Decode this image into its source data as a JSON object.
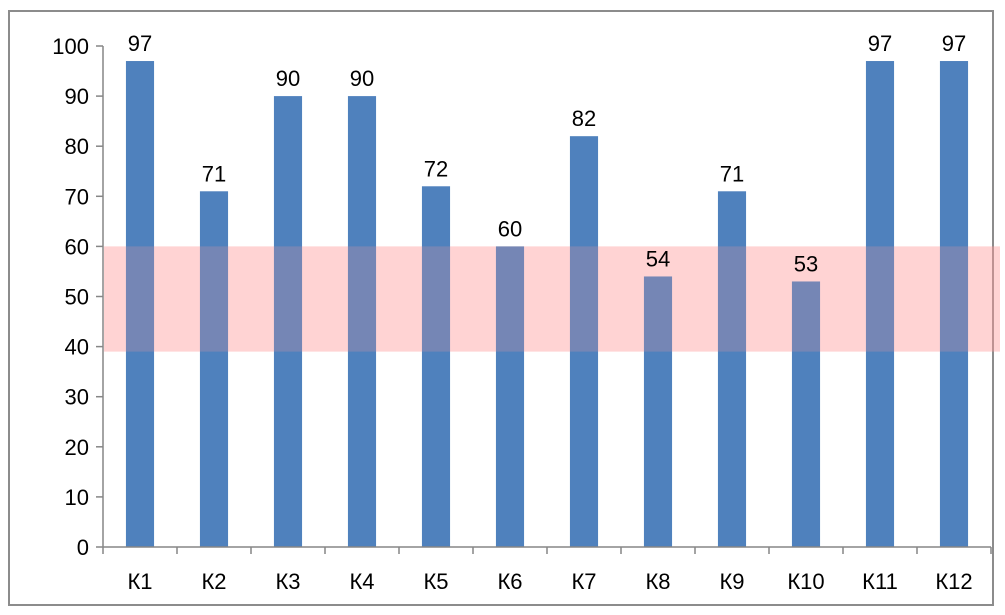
{
  "chart_data": {
    "type": "bar",
    "title": "",
    "xlabel": "",
    "ylabel": "",
    "categories": [
      "К1",
      "К2",
      "К3",
      "К4",
      "К5",
      "К6",
      "К7",
      "К8",
      "К9",
      "К10",
      "К11",
      "К12"
    ],
    "values": [
      97,
      71,
      90,
      90,
      72,
      60,
      82,
      54,
      71,
      53,
      97,
      97
    ],
    "data_labels": [
      "97",
      "71",
      "90",
      "90",
      "72",
      "60",
      "82",
      "54",
      "71",
      "53",
      "97",
      "97"
    ],
    "ylim": [
      0,
      100
    ],
    "yticks": [
      "0",
      "10",
      "20",
      "30",
      "40",
      "50",
      "60",
      "70",
      "80",
      "90",
      "100"
    ],
    "highlight_band": {
      "from": 39,
      "to": 60,
      "color": "#ff9999",
      "opacity": 0.4
    },
    "bar_color": "#4f81bd",
    "grid": false,
    "legend": "none"
  }
}
